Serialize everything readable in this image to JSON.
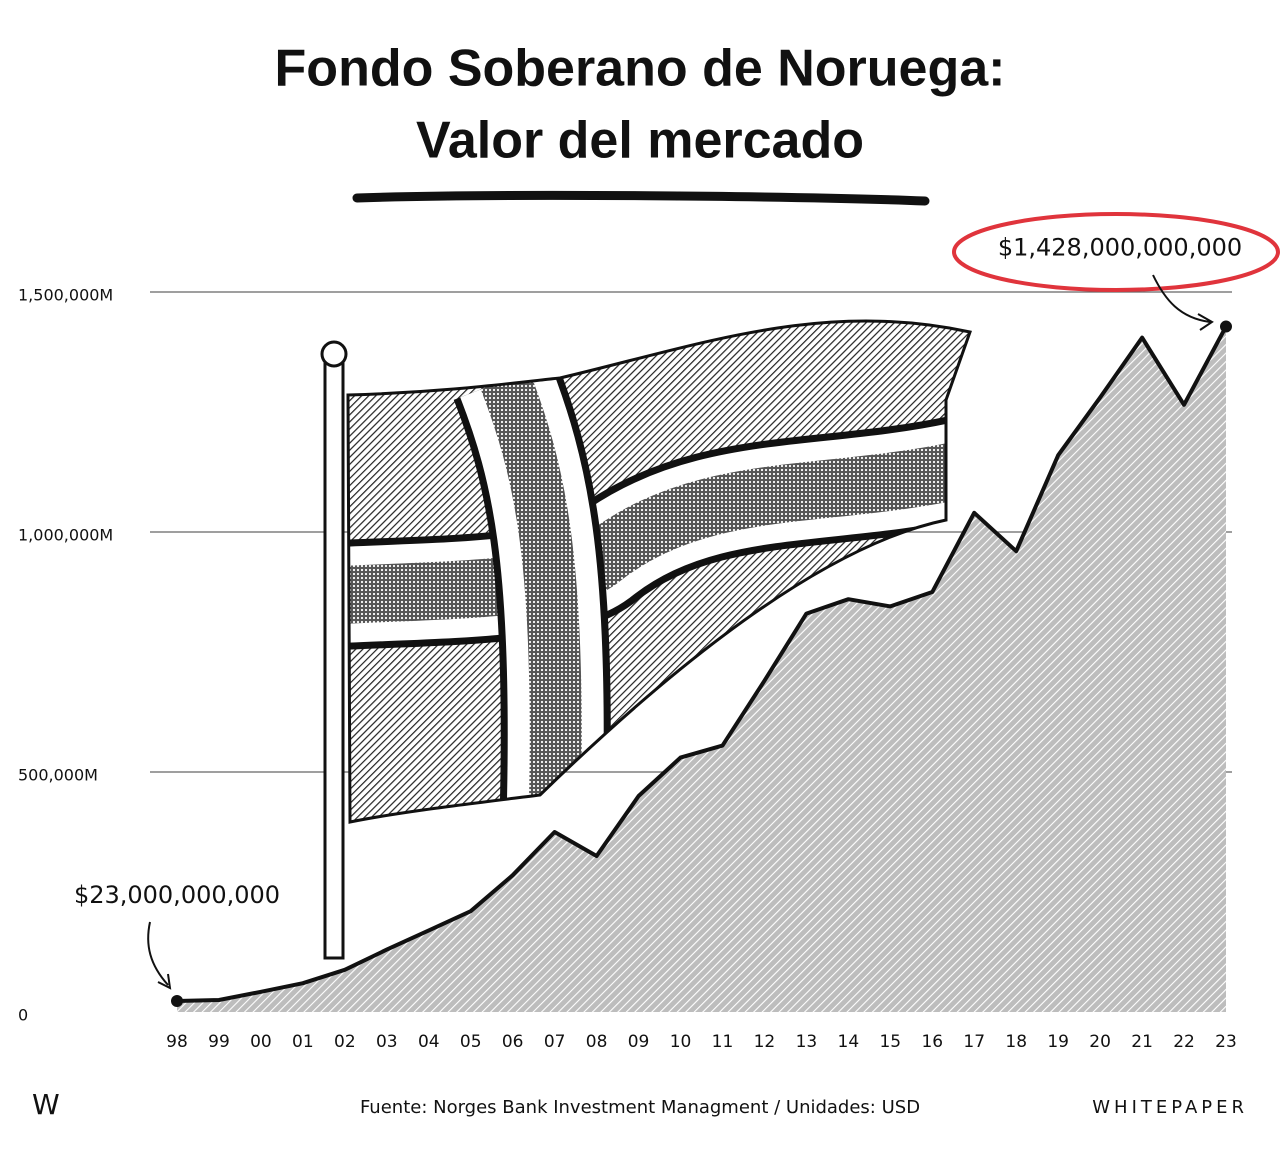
{
  "chart_data": {
    "type": "area",
    "title": [
      "Fondo Soberano de Noruega:",
      "Valor del mercado"
    ],
    "categories": [
      "98",
      "99",
      "00",
      "01",
      "02",
      "03",
      "04",
      "05",
      "06",
      "07",
      "08",
      "09",
      "10",
      "11",
      "12",
      "13",
      "14",
      "15",
      "16",
      "17",
      "18",
      "19",
      "20",
      "21",
      "22",
      "23"
    ],
    "values": [
      23000,
      25000,
      42000,
      60000,
      88000,
      130000,
      170000,
      210000,
      285000,
      375000,
      325000,
      450000,
      530000,
      555000,
      690000,
      830000,
      860000,
      845000,
      875000,
      1040000,
      960000,
      1160000,
      1280000,
      1405000,
      1265000,
      1428000
    ],
    "value_labels": [
      "$23,000,000,000",
      null,
      null,
      null,
      null,
      null,
      null,
      null,
      null,
      null,
      null,
      null,
      null,
      null,
      null,
      null,
      null,
      null,
      null,
      null,
      null,
      null,
      null,
      null,
      null,
      "$1,428,000,000,000"
    ],
    "color": "#555555",
    "ylim": [
      0,
      1650000
    ],
    "yticks": [
      0,
      {
        "value": 500000,
        "label": "500,000M"
      },
      {
        "value": 1000000,
        "label": "1,000,000M"
      },
      {
        "value": 1500000,
        "label": "1,500,000M"
      }
    ],
    "grid": true
  },
  "footer": {
    "logo": "W",
    "source": "Fuente: Norges Bank Investment Managment / Unidades: USD",
    "brand": "WHITEPAPER"
  }
}
